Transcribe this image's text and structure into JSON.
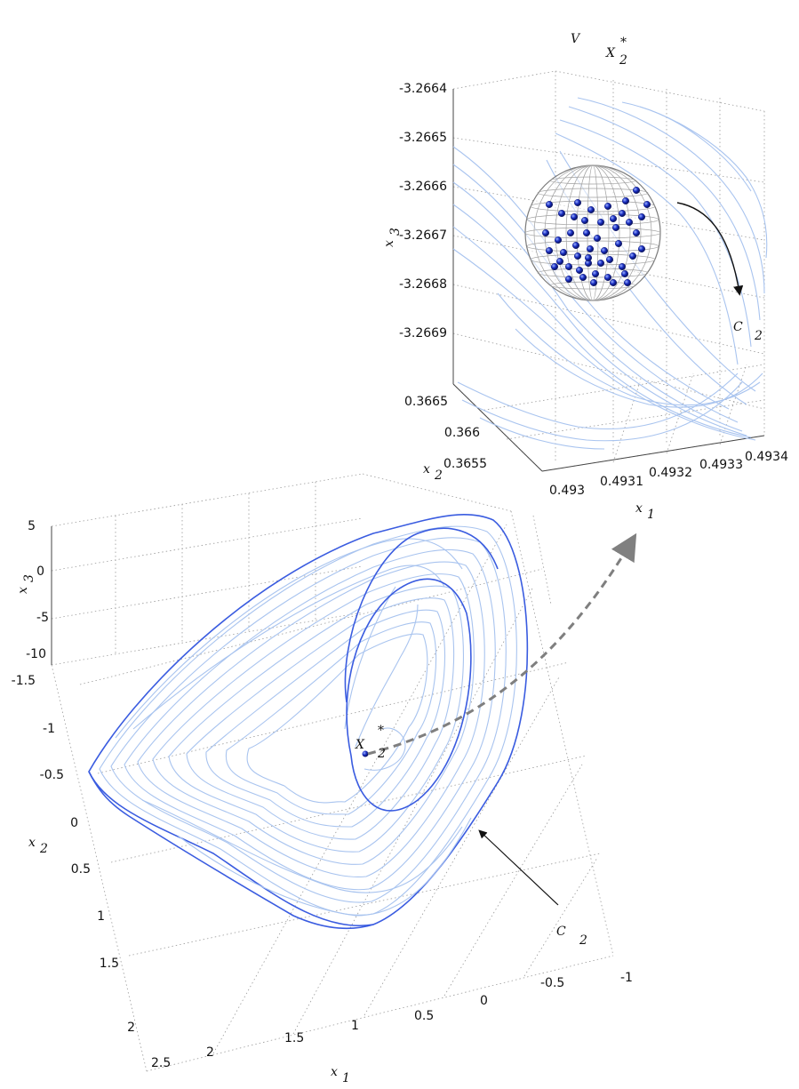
{
  "chart_data": [
    {
      "type": "line",
      "subtype": "3d-trajectory",
      "title": "",
      "axes": {
        "x1": {
          "label": "x",
          "label_sub": "1",
          "ticks": [
            "-1",
            "-0.5",
            "0",
            "0.5",
            "1",
            "1.5",
            "2",
            "2.5"
          ],
          "range": [
            -1,
            2.5
          ]
        },
        "x2": {
          "label": "x",
          "label_sub": "2",
          "ticks": [
            "-1.5",
            "-1",
            "-0.5",
            "0",
            "0.5",
            "1",
            "1.5",
            "2"
          ],
          "range": [
            -1.5,
            2
          ]
        },
        "x3": {
          "label": "x",
          "label_sub": "3",
          "ticks": [
            "5",
            "0",
            "-5",
            "-10"
          ],
          "range": [
            -10,
            5
          ]
        }
      },
      "grid": true,
      "series": [
        {
          "name": "",
          "color": "#a9c4ef"
        },
        {
          "name": "",
          "color": "#3a5ce0"
        }
      ],
      "annotations": {
        "equilibrium": {
          "symbol": "X",
          "sub": "2",
          "sup": "*"
        },
        "trajectory": {
          "symbol": "C",
          "sub": "2"
        }
      }
    },
    {
      "type": "scatter",
      "subtype": "3d-zoom-inset",
      "title": {
        "symbol": "V",
        "sub": "X",
        "subsub": "2",
        "sup": "*"
      },
      "axes": {
        "x1": {
          "label": "x",
          "label_sub": "1",
          "ticks": [
            "0.493",
            "0.4931",
            "0.4932",
            "0.4933",
            "0.4934"
          ],
          "range": [
            0.493,
            0.4934
          ]
        },
        "x2": {
          "label": "x",
          "label_sub": "2",
          "ticks": [
            "0.3655",
            "0.366",
            "0.3665"
          ],
          "range": [
            0.3655,
            0.3665
          ]
        },
        "x3": {
          "label": "x",
          "label_sub": "3",
          "ticks": [
            "-3.2664",
            "-3.2665",
            "-3.2666",
            "-3.2667",
            "-3.2668",
            "-3.2669"
          ],
          "range": [
            -3.2669,
            -3.2664
          ]
        }
      },
      "grid": true,
      "annotations": {
        "trajectory": {
          "symbol": "C",
          "sub": "2"
        }
      },
      "colors": {
        "points": "#1a2fc4",
        "sphere": "#8a8a8a",
        "traj": "#a9c4ef"
      }
    }
  ]
}
